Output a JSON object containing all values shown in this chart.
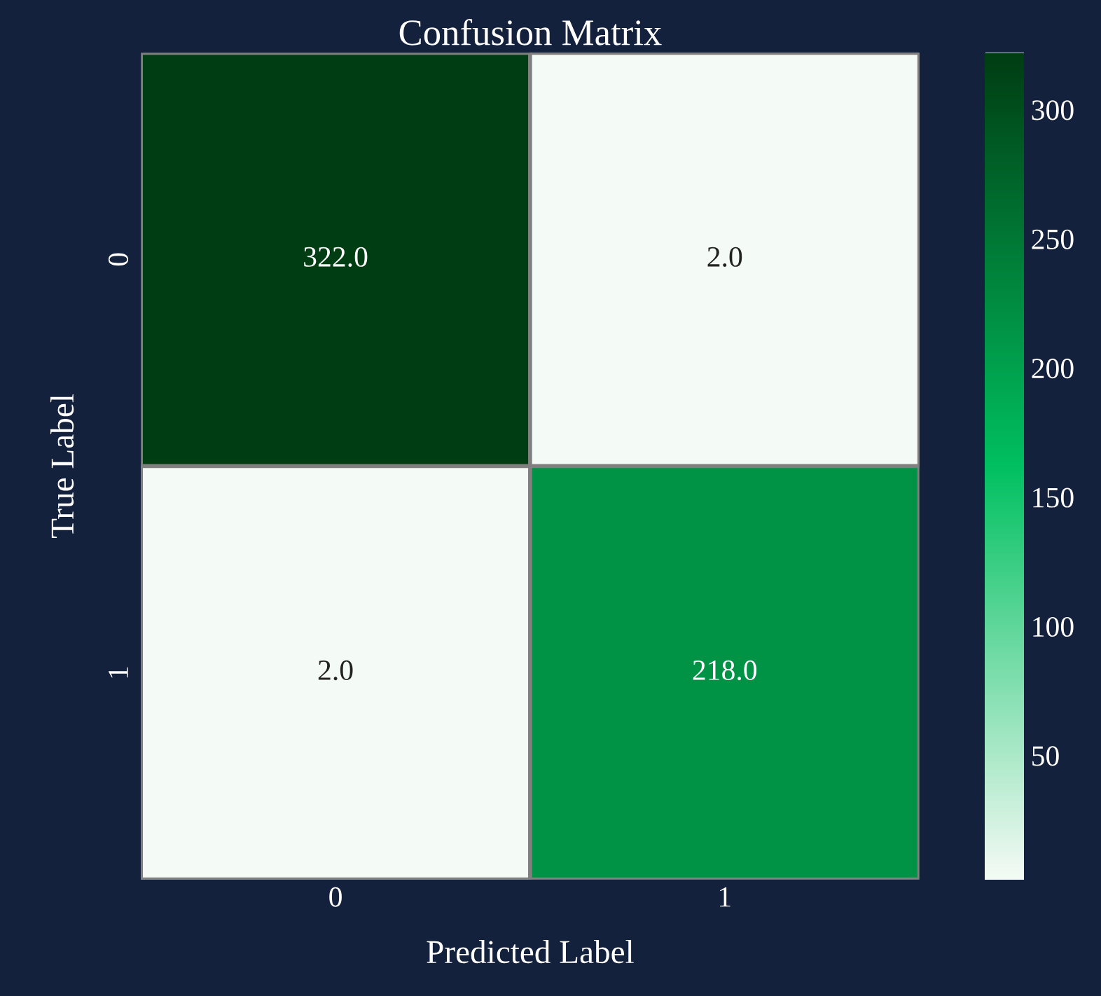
{
  "chart_data": {
    "type": "heatmap",
    "title": "Confusion Matrix",
    "xlabel": "Predicted Label",
    "ylabel": "True Label",
    "categories": [
      "0",
      "1"
    ],
    "y_categories": [
      "0",
      "1"
    ],
    "cells": [
      [
        322,
        2
      ],
      [
        2,
        218
      ]
    ],
    "cell_labels": [
      [
        "322.0",
        "2.0"
      ],
      [
        "2.0",
        "218.0"
      ]
    ],
    "colors": [
      "#f4faf5",
      "#00c060",
      "#003d12"
    ],
    "clim": [
      2,
      322
    ],
    "cticks": [
      50,
      100,
      150,
      200,
      250,
      300
    ]
  }
}
